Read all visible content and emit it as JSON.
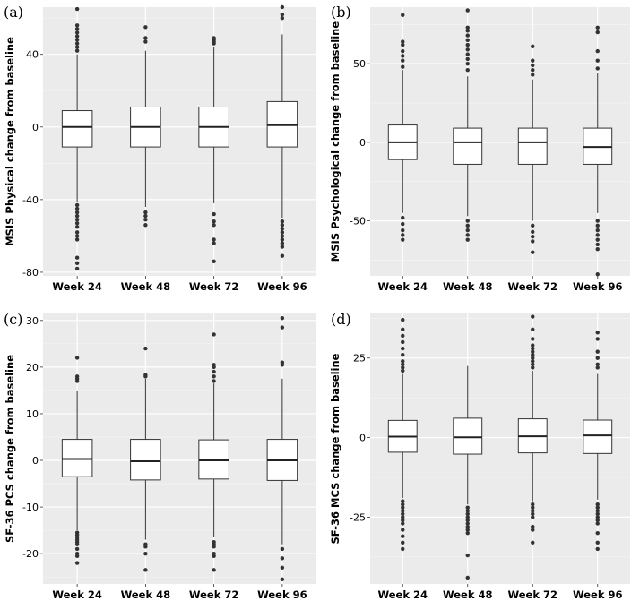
{
  "chart_data": [
    {
      "type": "boxplot",
      "panel_label": "(a)",
      "ylabel": "MSIS Physical change from baseline",
      "categories": [
        "Week 24",
        "Week 48",
        "Week 72",
        "Week 96"
      ],
      "yticks": [
        40,
        0,
        -40,
        -80
      ],
      "ytick_labels": [
        "40",
        "0",
        "-40",
        "-80"
      ],
      "ylim": [
        -82,
        66
      ],
      "boxes": [
        {
          "q1": -11,
          "median": 0,
          "q3": 9,
          "whisker_low": -41,
          "whisker_high": 40,
          "outliers_low": [
            -43,
            -45,
            -47,
            -49,
            -51,
            -53,
            -55,
            -58,
            -60,
            -62,
            -72,
            -75,
            -78
          ],
          "outliers_high": [
            42,
            44,
            46,
            48,
            50,
            52,
            54,
            56,
            65
          ]
        },
        {
          "q1": -11,
          "median": 0,
          "q3": 11,
          "whisker_low": -44,
          "whisker_high": 42,
          "outliers_low": [
            -47,
            -49,
            -51,
            -54
          ],
          "outliers_high": [
            47,
            49,
            55
          ]
        },
        {
          "q1": -11,
          "median": 0,
          "q3": 11,
          "whisker_low": -42,
          "whisker_high": 44,
          "outliers_low": [
            -48,
            -52,
            -54,
            -62,
            -64,
            -74
          ],
          "outliers_high": [
            46,
            47,
            48,
            49
          ]
        },
        {
          "q1": -11,
          "median": 1,
          "q3": 14,
          "whisker_low": -50,
          "whisker_high": 51,
          "outliers_low": [
            -52,
            -54,
            -56,
            -58,
            -60,
            -62,
            -64,
            -66,
            -71
          ],
          "outliers_high": [
            60,
            62,
            66
          ]
        }
      ]
    },
    {
      "type": "boxplot",
      "panel_label": "(b)",
      "ylabel": "MSIS Psychological change from baseline",
      "categories": [
        "Week 24",
        "Week 48",
        "Week 72",
        "Week 96"
      ],
      "yticks": [
        50,
        0,
        -50
      ],
      "ytick_labels": [
        "50",
        "0",
        "-50"
      ],
      "ylim": [
        -85,
        86
      ],
      "boxes": [
        {
          "q1": -11,
          "median": 0,
          "q3": 11,
          "whisker_low": -45,
          "whisker_high": 46,
          "outliers_low": [
            -48,
            -52,
            -56,
            -59,
            -62
          ],
          "outliers_high": [
            48,
            52,
            55,
            58,
            62,
            64,
            81
          ]
        },
        {
          "q1": -14,
          "median": 0,
          "q3": 9,
          "whisker_low": -47,
          "whisker_high": 42,
          "outliers_low": [
            -50,
            -53,
            -56,
            -59,
            -62
          ],
          "outliers_high": [
            46,
            50,
            53,
            56,
            59,
            62,
            65,
            68,
            71,
            73,
            84
          ]
        },
        {
          "q1": -14,
          "median": 0,
          "q3": 9,
          "whisker_low": -50,
          "whisker_high": 40,
          "outliers_low": [
            -53,
            -57,
            -60,
            -63,
            -70
          ],
          "outliers_high": [
            43,
            46,
            49,
            52,
            61
          ]
        },
        {
          "q1": -14,
          "median": -3,
          "q3": 9,
          "whisker_low": -45,
          "whisker_high": 44,
          "outliers_low": [
            -50,
            -53,
            -56,
            -59,
            -62,
            -65,
            -68,
            -84
          ],
          "outliers_high": [
            47,
            52,
            58,
            70,
            73
          ]
        }
      ]
    },
    {
      "type": "boxplot",
      "panel_label": "(c)",
      "ylabel": "SF-36 PCS change from baseline",
      "categories": [
        "Week 24",
        "Week 48",
        "Week 72",
        "Week 96"
      ],
      "yticks": [
        30,
        20,
        10,
        0,
        -10,
        -20
      ],
      "ytick_labels": [
        "30",
        "20",
        "10",
        "0",
        "-10",
        "-20"
      ],
      "ylim": [
        -26.5,
        31.5
      ],
      "boxes": [
        {
          "q1": -3.5,
          "median": 0.3,
          "q3": 4.5,
          "whisker_low": -15,
          "whisker_high": 15,
          "outliers_low": [
            -15.5,
            -16,
            -16.5,
            -17,
            -17.5,
            -18,
            -19,
            -20,
            -20.5,
            -22
          ],
          "outliers_high": [
            17,
            17.5,
            18,
            22
          ]
        },
        {
          "q1": -4.2,
          "median": -0.2,
          "q3": 4.5,
          "whisker_low": -17,
          "whisker_high": 17.5,
          "outliers_low": [
            -18,
            -18.5,
            -20,
            -23.5
          ],
          "outliers_high": [
            18,
            18.3,
            24
          ]
        },
        {
          "q1": -4,
          "median": 0,
          "q3": 4.4,
          "whisker_low": -16.5,
          "whisker_high": 16.5,
          "outliers_low": [
            -17.5,
            -18,
            -18.5,
            -20,
            -20.5,
            -23.5
          ],
          "outliers_high": [
            17,
            18,
            19,
            20,
            20.5,
            27
          ]
        },
        {
          "q1": -4.3,
          "median": 0,
          "q3": 4.5,
          "whisker_low": -18,
          "whisker_high": 17.5,
          "outliers_low": [
            -19,
            -21,
            -23,
            -25.5
          ],
          "outliers_high": [
            20.5,
            21,
            28.5,
            30.5
          ]
        }
      ]
    },
    {
      "type": "boxplot",
      "panel_label": "(d)",
      "ylabel": "SF-36 MCS change from baseline",
      "categories": [
        "Week 24",
        "Week 48",
        "Week 72",
        "Week 96"
      ],
      "yticks": [
        25,
        0,
        -25
      ],
      "ytick_labels": [
        "25",
        "0",
        "-25"
      ],
      "ylim": [
        -46,
        39
      ],
      "boxes": [
        {
          "q1": -4.6,
          "median": 0.3,
          "q3": 5.4,
          "whisker_low": -19,
          "whisker_high": 20,
          "outliers_low": [
            -20,
            -21,
            -22,
            -23,
            -24,
            -25,
            -26,
            -27,
            -29,
            -31,
            -33,
            -35
          ],
          "outliers_high": [
            21,
            22,
            23,
            24,
            26,
            28,
            30,
            32,
            34,
            37
          ]
        },
        {
          "q1": -5.2,
          "median": 0.1,
          "q3": 6.1,
          "whisker_low": -21,
          "whisker_high": 22.5,
          "outliers_low": [
            -22,
            -23,
            -24,
            -25,
            -26,
            -27,
            -28,
            -29,
            -30,
            -37,
            -44
          ]
        },
        {
          "q1": -4.8,
          "median": 0.4,
          "q3": 5.9,
          "whisker_low": -20,
          "whisker_high": 21,
          "outliers_low": [
            -21,
            -22,
            -23,
            -24,
            -25,
            -28,
            -29,
            -33
          ],
          "outliers_high": [
            22,
            23,
            24,
            25,
            26,
            27,
            28,
            29,
            31,
            34,
            38
          ]
        },
        {
          "q1": -5,
          "median": 0.7,
          "q3": 5.5,
          "whisker_low": -19.5,
          "whisker_high": 20,
          "outliers_low": [
            -21,
            -22,
            -23,
            -24,
            -25,
            -26,
            -27,
            -30,
            -33,
            -35
          ],
          "outliers_high": [
            22,
            23,
            25,
            27,
            31,
            33
          ]
        }
      ]
    }
  ]
}
